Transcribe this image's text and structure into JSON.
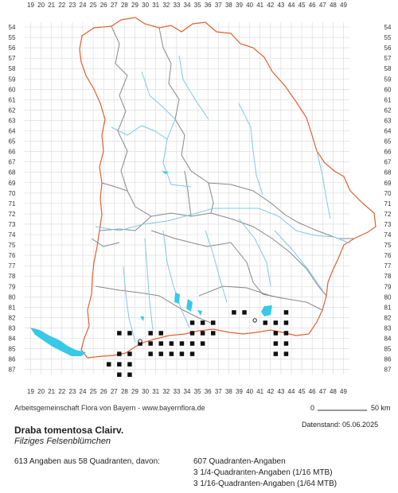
{
  "map": {
    "col_labels": [
      "19",
      "20",
      "21",
      "22",
      "23",
      "24",
      "25",
      "26",
      "27",
      "28",
      "29",
      "30",
      "31",
      "32",
      "33",
      "34",
      "35",
      "36",
      "37",
      "38",
      "39",
      "40",
      "41",
      "42",
      "43",
      "44",
      "45",
      "46",
      "47",
      "48",
      "49"
    ],
    "row_labels": [
      "54",
      "55",
      "56",
      "57",
      "58",
      "59",
      "60",
      "61",
      "62",
      "63",
      "64",
      "65",
      "66",
      "67",
      "68",
      "69",
      "70",
      "71",
      "72",
      "73",
      "74",
      "75",
      "76",
      "77",
      "78",
      "79",
      "80",
      "81",
      "82",
      "83",
      "84",
      "85",
      "86",
      "87"
    ],
    "colors": {
      "grid": "#d8d8d8",
      "state_border": "#e06030",
      "district_border": "#888888",
      "rivers": "#7ec8e8",
      "lakes": "#38c8e8",
      "record_filled": "#111111"
    },
    "filled_records": [
      [
        "38",
        "81"
      ],
      [
        "39",
        "81"
      ],
      [
        "43",
        "81"
      ],
      [
        "34",
        "82"
      ],
      [
        "35",
        "82"
      ],
      [
        "36",
        "82"
      ],
      [
        "41",
        "82"
      ],
      [
        "42",
        "82"
      ],
      [
        "43",
        "82"
      ],
      [
        "27",
        "83"
      ],
      [
        "28",
        "83"
      ],
      [
        "30",
        "83"
      ],
      [
        "31",
        "83"
      ],
      [
        "34",
        "83"
      ],
      [
        "35",
        "83"
      ],
      [
        "36",
        "83"
      ],
      [
        "42",
        "83"
      ],
      [
        "43",
        "83"
      ],
      [
        "29",
        "84"
      ],
      [
        "30",
        "84"
      ],
      [
        "31",
        "84"
      ],
      [
        "32",
        "84"
      ],
      [
        "33",
        "84"
      ],
      [
        "34",
        "84"
      ],
      [
        "35",
        "84"
      ],
      [
        "42",
        "84"
      ],
      [
        "43",
        "84"
      ],
      [
        "27",
        "85"
      ],
      [
        "28",
        "85"
      ],
      [
        "30",
        "85"
      ],
      [
        "31",
        "85"
      ],
      [
        "32",
        "85"
      ],
      [
        "33",
        "85"
      ],
      [
        "34",
        "85"
      ],
      [
        "42",
        "85"
      ],
      [
        "43",
        "85"
      ],
      [
        "26",
        "86"
      ],
      [
        "27",
        "86"
      ],
      [
        "28",
        "86"
      ],
      [
        "27",
        "87"
      ],
      [
        "28",
        "87"
      ]
    ],
    "open_records": [
      [
        "29",
        "84"
      ],
      [
        "40",
        "82"
      ]
    ]
  },
  "credit": "Arbeitsgemeinschaft Flora von Bayern - www.bayernflora.de",
  "scale": {
    "zero": "0",
    "label": "50 km"
  },
  "datestand": "Datenstand: 05.06.2025",
  "species": {
    "scientific": "Draba tomentosa Clairv.",
    "common": "Filziges Felsenblümchen"
  },
  "summary": "613 Angaben aus 58 Quadranten, davon:",
  "breakdown": [
    "607 Quadranten-Angaben",
    "3 1/4-Quadranten-Angaben (1/16 MTB)",
    "3 1/16-Quadranten-Angaben (1/64 MTB)"
  ]
}
